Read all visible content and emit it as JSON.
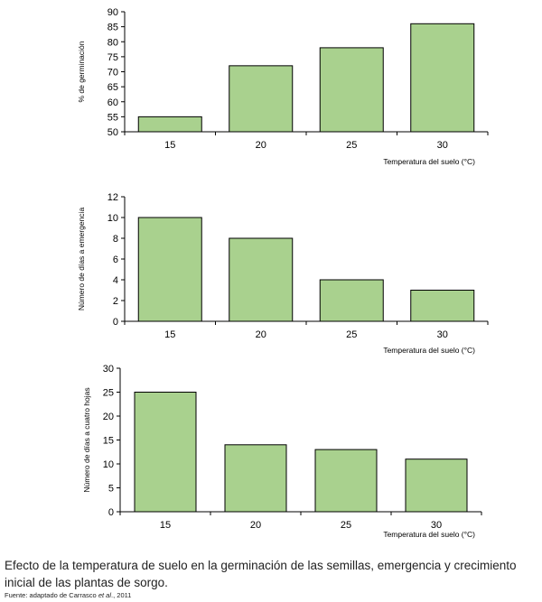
{
  "chart_data": [
    {
      "type": "bar",
      "categories": [
        "15",
        "20",
        "25",
        "30"
      ],
      "values": [
        55,
        72,
        78,
        86
      ],
      "xlabel": "Temperatura del suelo (°C)",
      "ylabel": "% de germinación",
      "ylim": [
        50,
        90
      ],
      "yticks": [
        50,
        55,
        60,
        65,
        70,
        75,
        80,
        85,
        90
      ],
      "bar_color": "#a9d18e",
      "grid": false
    },
    {
      "type": "bar",
      "categories": [
        "15",
        "20",
        "25",
        "30"
      ],
      "values": [
        10,
        8,
        4,
        3
      ],
      "xlabel": "Temperatura del suelo (°C)",
      "ylabel": "Número de días a emergencia",
      "ylim": [
        0,
        12
      ],
      "yticks": [
        0,
        2,
        4,
        6,
        8,
        10,
        12
      ],
      "bar_color": "#a9d18e",
      "grid": false
    },
    {
      "type": "bar",
      "categories": [
        "15",
        "20",
        "25",
        "30"
      ],
      "values": [
        25,
        14,
        13,
        11
      ],
      "xlabel": "Temperatura del suelo (°C)",
      "ylabel": "Número de días a cuatro hojas",
      "ylim": [
        0,
        30
      ],
      "yticks": [
        0,
        5,
        10,
        15,
        20,
        25,
        30
      ],
      "bar_color": "#a9d18e",
      "grid": false
    }
  ],
  "caption": "Efecto de la temperatura de suelo en la germinación de las semillas, emergencia y crecimiento inicial de las plantas de sorgo.",
  "source": {
    "prefix": "Fuente: adaptado de Carrasco ",
    "italic": "et al",
    "suffix": "., 2011"
  }
}
